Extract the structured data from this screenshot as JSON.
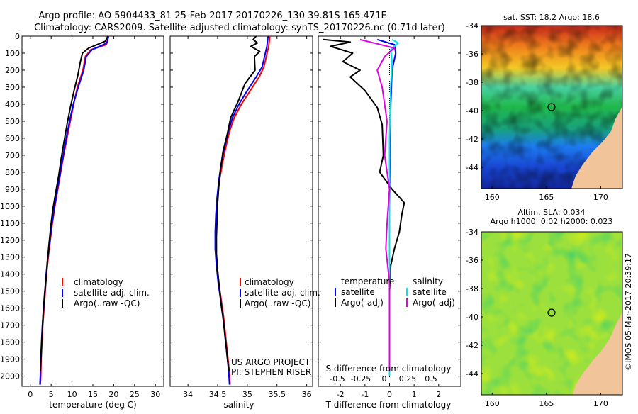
{
  "header": {
    "title_line1": "Argo profile: AO 5904433_81 25-Feb-2017 20170226_130 39.81S 165.471E",
    "title_line2": "Climatology: CARS2009. Satellite-adjusted climatology: synTS_20170226.nc (0.71d later)"
  },
  "colors": {
    "climatology": "#ff0000",
    "satellite_adj": "#0000ff",
    "argo": "#000000",
    "sat_salinity": "#00e5e5",
    "argo_salinity_adj": "#e000e0"
  },
  "panel_texts": {
    "credits_line1": "US ARGO PROJECT",
    "credits_line2": "PI: STEPHEN RISER",
    "top_diff_label": "S difference from climatology",
    "diff_legend_temp_head": "temperature",
    "diff_legend_sal_head": "salinity",
    "diff_legend_satellite": "satellite",
    "diff_legend_argo_adj": "Argo(-adj)",
    "sst_title": "sat. SST: 18.2 Argo: 18.6",
    "sla_title1": "Altim. SLA: 0.034",
    "sla_title2": "Argo h1000: 0.02 h2000: 0.023",
    "imos_stamp": "©IMOS 05-Mar-2017 20:39:17"
  },
  "chart_data": [
    {
      "type": "line",
      "panel": "temperature",
      "xlabel": "temperature (deg C)",
      "ylabel": "",
      "xlim": [
        -2,
        32
      ],
      "ylim": [
        2060,
        0
      ],
      "x_ticks": [
        0,
        5,
        10,
        15,
        20,
        25,
        30
      ],
      "y_ticks": [
        0,
        100,
        200,
        300,
        400,
        500,
        600,
        700,
        800,
        900,
        1000,
        1100,
        1200,
        1300,
        1400,
        1500,
        1600,
        1700,
        1800,
        1900,
        2000
      ],
      "legend": [
        "climatology",
        "satellite-adj. clim.",
        "Argo(..raw -QC)"
      ],
      "series": [
        {
          "name": "climatology",
          "color": "#ff0000",
          "points": [
            [
              18.8,
              0
            ],
            [
              18.2,
              50
            ],
            [
              14.5,
              80
            ],
            [
              13.2,
              120
            ],
            [
              12.6,
              200
            ],
            [
              11.3,
              300
            ],
            [
              10.4,
              400
            ],
            [
              9.6,
              500
            ],
            [
              8.8,
              600
            ],
            [
              8.0,
              700
            ],
            [
              7.3,
              800
            ],
            [
              6.6,
              900
            ],
            [
              5.9,
              1000
            ],
            [
              5.3,
              1100
            ],
            [
              4.8,
              1200
            ],
            [
              4.3,
              1300
            ],
            [
              3.9,
              1400
            ],
            [
              3.6,
              1500
            ],
            [
              3.3,
              1600
            ],
            [
              3.0,
              1700
            ],
            [
              2.8,
              1800
            ],
            [
              2.6,
              1900
            ],
            [
              2.5,
              2000
            ],
            [
              2.4,
              2050
            ]
          ]
        },
        {
          "name": "satellite-adj. clim.",
          "color": "#0000ff",
          "points": [
            [
              18.7,
              0
            ],
            [
              18.4,
              40
            ],
            [
              14.8,
              80
            ],
            [
              13.4,
              120
            ],
            [
              12.8,
              200
            ],
            [
              11.5,
              300
            ],
            [
              10.3,
              400
            ],
            [
              9.4,
              500
            ],
            [
              8.6,
              600
            ],
            [
              7.9,
              700
            ],
            [
              7.2,
              800
            ],
            [
              6.5,
              900
            ],
            [
              5.8,
              1000
            ],
            [
              5.2,
              1100
            ],
            [
              4.7,
              1200
            ],
            [
              4.2,
              1300
            ],
            [
              3.8,
              1400
            ],
            [
              3.5,
              1500
            ],
            [
              3.2,
              1600
            ],
            [
              2.9,
              1700
            ],
            [
              2.7,
              1800
            ],
            [
              2.5,
              1900
            ],
            [
              2.4,
              2000
            ],
            [
              2.3,
              2050
            ]
          ]
        },
        {
          "name": "Argo(..raw -QC)",
          "color": "#000000",
          "points": [
            [
              18.6,
              0
            ],
            [
              18.0,
              30
            ],
            [
              14.0,
              70
            ],
            [
              12.5,
              100
            ],
            [
              12.0,
              150
            ],
            [
              11.4,
              230
            ],
            [
              10.5,
              320
            ],
            [
              9.6,
              420
            ],
            [
              8.8,
              520
            ],
            [
              8.1,
              620
            ],
            [
              7.4,
              720
            ],
            [
              6.8,
              820
            ],
            [
              6.1,
              920
            ],
            [
              5.4,
              1020
            ],
            [
              4.9,
              1120
            ],
            [
              4.5,
              1220
            ],
            [
              4.1,
              1320
            ],
            [
              3.8,
              1420
            ],
            [
              3.4,
              1520
            ],
            [
              3.1,
              1620
            ],
            [
              2.9,
              1720
            ],
            [
              2.7,
              1820
            ],
            [
              2.5,
              1920
            ],
            [
              2.4,
              1970
            ]
          ]
        }
      ]
    },
    {
      "type": "line",
      "panel": "salinity",
      "xlabel": "salinity",
      "xlim": [
        33.7,
        36.1
      ],
      "ylim": [
        2060,
        0
      ],
      "x_ticks": [
        34,
        34.5,
        35,
        35.5,
        36
      ],
      "legend": [
        "climatology",
        "satellite-adj. clim.",
        "Argo(..raw -QC)"
      ],
      "series": [
        {
          "name": "climatology",
          "color": "#ff0000",
          "points": [
            [
              35.38,
              0
            ],
            [
              35.36,
              60
            ],
            [
              35.32,
              120
            ],
            [
              35.28,
              180
            ],
            [
              35.2,
              240
            ],
            [
              35.05,
              320
            ],
            [
              34.9,
              400
            ],
            [
              34.78,
              480
            ],
            [
              34.7,
              560
            ],
            [
              34.64,
              650
            ],
            [
              34.58,
              750
            ],
            [
              34.53,
              850
            ],
            [
              34.5,
              950
            ],
            [
              34.48,
              1050
            ],
            [
              34.47,
              1150
            ],
            [
              34.47,
              1250
            ],
            [
              34.49,
              1350
            ],
            [
              34.52,
              1450
            ],
            [
              34.56,
              1550
            ],
            [
              34.6,
              1650
            ],
            [
              34.63,
              1750
            ],
            [
              34.66,
              1850
            ],
            [
              34.69,
              1950
            ],
            [
              34.71,
              2050
            ]
          ]
        },
        {
          "name": "satellite-adj. clim.",
          "color": "#0000ff",
          "points": [
            [
              35.35,
              0
            ],
            [
              35.33,
              60
            ],
            [
              35.29,
              120
            ],
            [
              35.25,
              180
            ],
            [
              35.15,
              240
            ],
            [
              35.0,
              320
            ],
            [
              34.86,
              400
            ],
            [
              34.75,
              480
            ],
            [
              34.68,
              560
            ],
            [
              34.62,
              650
            ],
            [
              34.56,
              750
            ],
            [
              34.52,
              850
            ],
            [
              34.49,
              950
            ],
            [
              34.47,
              1050
            ],
            [
              34.46,
              1150
            ],
            [
              34.46,
              1250
            ],
            [
              34.48,
              1350
            ],
            [
              34.51,
              1450
            ],
            [
              34.55,
              1550
            ],
            [
              34.59,
              1650
            ],
            [
              34.62,
              1750
            ],
            [
              34.65,
              1850
            ],
            [
              34.68,
              1950
            ],
            [
              34.7,
              2050
            ]
          ]
        },
        {
          "name": "Argo(..raw -QC)",
          "color": "#000000",
          "points": [
            [
              35.15,
              0
            ],
            [
              35.1,
              20
            ],
            [
              35.17,
              40
            ],
            [
              35.06,
              60
            ],
            [
              35.21,
              90
            ],
            [
              35.12,
              120
            ],
            [
              35.13,
              200
            ],
            [
              34.96,
              280
            ],
            [
              34.85,
              380
            ],
            [
              34.72,
              480
            ],
            [
              34.66,
              580
            ],
            [
              34.59,
              680
            ],
            [
              34.55,
              780
            ],
            [
              34.52,
              880
            ],
            [
              34.5,
              980
            ],
            [
              34.49,
              1080
            ],
            [
              34.48,
              1180
            ],
            [
              34.48,
              1280
            ],
            [
              34.5,
              1380
            ],
            [
              34.53,
              1480
            ],
            [
              34.56,
              1580
            ],
            [
              34.6,
              1680
            ],
            [
              34.63,
              1780
            ],
            [
              34.66,
              1880
            ],
            [
              34.69,
              1970
            ]
          ]
        }
      ]
    },
    {
      "type": "line",
      "panel": "difference",
      "xlabel": "T difference from climatology",
      "top_xlabel": "S difference from climatology",
      "xlim": [
        -2.9,
        2.9
      ],
      "ylim": [
        2060,
        0
      ],
      "x_ticks": [
        -2,
        -1,
        0,
        1,
        2
      ],
      "top_ticks": [
        -0.5,
        -0.25,
        0,
        0.25,
        0.5
      ],
      "series": [
        {
          "name": "satellite (temperature)",
          "color": "#0000ff",
          "points": [
            [
              -0.5,
              20
            ],
            [
              0.2,
              50
            ],
            [
              0.25,
              100
            ],
            [
              0.1,
              200
            ],
            [
              0.05,
              400
            ],
            [
              0.02,
              700
            ],
            [
              0.0,
              1000
            ],
            [
              0.0,
              1500
            ],
            [
              0.0,
              2000
            ]
          ]
        },
        {
          "name": "Argo(-adj) (temperature)",
          "color": "#000000",
          "points": [
            [
              -2.7,
              20
            ],
            [
              -1.6,
              35
            ],
            [
              -2.4,
              60
            ],
            [
              -1.5,
              100
            ],
            [
              -1.9,
              150
            ],
            [
              -1.2,
              200
            ],
            [
              -1.6,
              240
            ],
            [
              -1.0,
              320
            ],
            [
              -0.5,
              420
            ],
            [
              -0.3,
              520
            ],
            [
              -0.25,
              700
            ],
            [
              -0.4,
              800
            ],
            [
              0.1,
              900
            ],
            [
              0.6,
              980
            ],
            [
              0.5,
              1050
            ],
            [
              0.4,
              1150
            ],
            [
              0.2,
              1250
            ],
            [
              0.05,
              1350
            ],
            [
              0.0,
              1500
            ],
            [
              0.0,
              1800
            ],
            [
              0.0,
              1970
            ]
          ]
        },
        {
          "name": "satellite (salinity)",
          "color": "#00e5e5",
          "points": [
            [
              0.1,
              20
            ],
            [
              0.35,
              40
            ],
            [
              0.05,
              80
            ],
            [
              0.1,
              150
            ],
            [
              0.05,
              300
            ],
            [
              0.0,
              600
            ],
            [
              0.0,
              1000
            ],
            [
              0.0,
              1500
            ],
            [
              0.0,
              2000
            ]
          ]
        },
        {
          "name": "Argo(-adj) (salinity)",
          "color": "#e000e0",
          "points": [
            [
              -1.2,
              20
            ],
            [
              -0.5,
              45
            ],
            [
              0.2,
              70
            ],
            [
              -0.2,
              120
            ],
            [
              -0.5,
              200
            ],
            [
              -0.3,
              300
            ],
            [
              -0.1,
              500
            ],
            [
              -0.2,
              700
            ],
            [
              0.0,
              900
            ],
            [
              -0.1,
              1100
            ],
            [
              -0.15,
              1250
            ],
            [
              0.0,
              1450
            ],
            [
              0.0,
              1700
            ],
            [
              0.0,
              1970
            ]
          ]
        }
      ]
    },
    {
      "type": "heatmap",
      "panel": "sst_map",
      "title": "sat. SST: 18.2 Argo: 18.6",
      "xlim": [
        159,
        172
      ],
      "ylim": [
        -45.5,
        -34
      ],
      "x_ticks": [
        160,
        165,
        170
      ],
      "y_ticks": [
        -34,
        -36,
        -38,
        -40,
        -42,
        -44
      ],
      "marker": {
        "lon": 165.471,
        "lat": -39.81
      }
    },
    {
      "type": "heatmap",
      "panel": "sla_map",
      "title": "Altim. SLA: 0.034",
      "xlim": [
        159,
        172
      ],
      "ylim": [
        -45.5,
        -34
      ],
      "x_ticks": [
        160,
        165,
        170
      ],
      "y_ticks": [
        -34,
        -36,
        -38,
        -40,
        -42,
        -44
      ],
      "marker": {
        "lon": 165.471,
        "lat": -39.81
      }
    }
  ]
}
